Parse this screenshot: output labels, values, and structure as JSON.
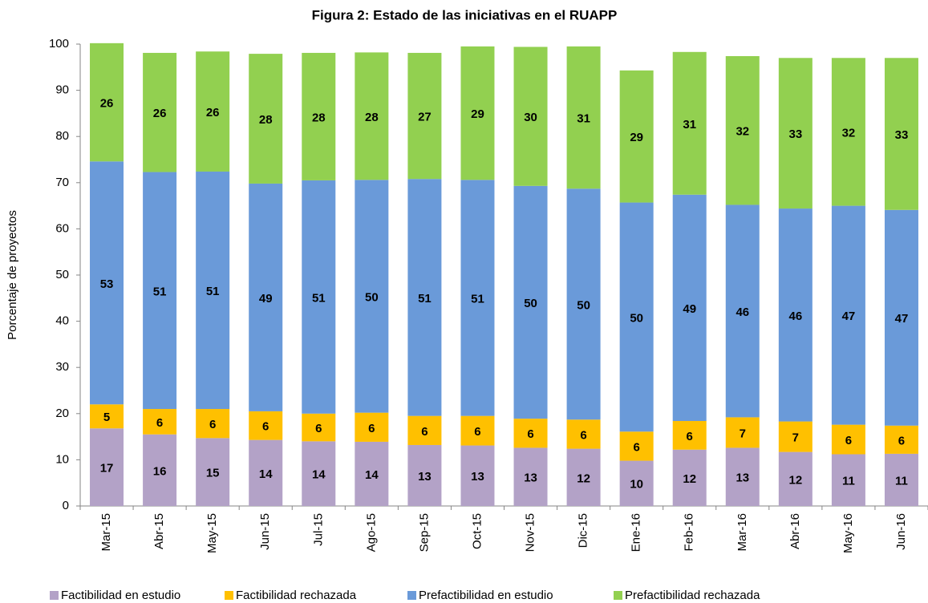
{
  "chart_data": {
    "type": "stacked_bar",
    "title": "Figura 2: Estado de las iniciativas en el RUAPP",
    "y_label": "Porcentaje de proyectos",
    "categories": [
      "Mar-15",
      "Abr-15",
      "May-15",
      "Jun-15",
      "Jul-15",
      "Ago-15",
      "Sep-15",
      "Oct-15",
      "Nov-15",
      "Dic-15",
      "Ene-16",
      "Feb-16",
      "Mar-16",
      "Abr-16",
      "May-16",
      "Jun-16"
    ],
    "ylim": [
      0,
      100
    ],
    "yticks": [
      0,
      10,
      20,
      30,
      40,
      50,
      60,
      70,
      80,
      90,
      100
    ],
    "grid": false,
    "legend": "bottom",
    "series": [
      {
        "name": "Factibilidad en estudio",
        "color": "#b3a2c7",
        "values": [
          16.8,
          15.5,
          14.7,
          14.3,
          14.0,
          13.9,
          13.2,
          13.1,
          12.6,
          12.4,
          9.8,
          12.2,
          12.6,
          11.7,
          11.2,
          11.3
        ],
        "value_labels": [
          "17",
          "16",
          "15",
          "14",
          "14",
          "14",
          "13",
          "13",
          "13",
          "12",
          "10",
          "12",
          "13",
          "12",
          "11",
          "11"
        ]
      },
      {
        "name": "Factibilidad rechazada",
        "color": "#ffc000",
        "values": [
          5.2,
          5.5,
          6.3,
          6.2,
          6.0,
          6.3,
          6.3,
          6.4,
          6.3,
          6.3,
          6.3,
          6.2,
          6.6,
          6.6,
          6.4,
          6.1
        ],
        "value_labels": [
          "5",
          "6",
          "6",
          "6",
          "6",
          "6",
          "6",
          "6",
          "6",
          "6",
          "6",
          "6",
          "7",
          "7",
          "6",
          "6"
        ]
      },
      {
        "name": "Prefactibilidad en estudio",
        "color": "#6a9ad9",
        "values": [
          52.6,
          51.3,
          51.4,
          49.3,
          50.5,
          50.4,
          51.3,
          51.1,
          50.4,
          50.0,
          49.6,
          49.0,
          46.0,
          46.1,
          47.4,
          46.7
        ],
        "value_labels": [
          "53",
          "51",
          "51",
          "49",
          "51",
          "50",
          "51",
          "51",
          "50",
          "50",
          "50",
          "49",
          "46",
          "46",
          "47",
          "47"
        ]
      },
      {
        "name": "Prefactibilidad rechazada",
        "color": "#92d050",
        "values": [
          25.6,
          25.8,
          26.0,
          28.1,
          27.6,
          27.6,
          27.3,
          28.9,
          30.1,
          30.8,
          28.6,
          30.9,
          32.2,
          32.6,
          32.0,
          32.9
        ],
        "value_labels": [
          "26",
          "26",
          "26",
          "28",
          "28",
          "28",
          "27",
          "29",
          "30",
          "31",
          "29",
          "31",
          "32",
          "33",
          "32",
          "33"
        ]
      }
    ]
  }
}
